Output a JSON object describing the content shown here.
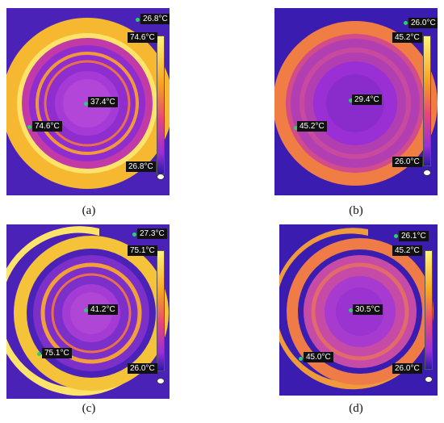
{
  "panels": [
    {
      "id": "a",
      "caption": "(a)",
      "scale_max": "74.6°C",
      "scale_min": "26.8°C",
      "top_reading": "26.8°C",
      "center_reading": "37.4°C",
      "left_reading": "74.6°C"
    },
    {
      "id": "b",
      "caption": "(b)",
      "scale_max": "45.2°C",
      "scale_min": "26.0°C",
      "top_reading": "26.0°C",
      "center_reading": "29.4°C",
      "left_reading": "45.2°C"
    },
    {
      "id": "c",
      "caption": "(c)",
      "scale_max": "75.1°C",
      "scale_min": "26.0°C",
      "top_reading": "27.3°C",
      "center_reading": "41.2°C",
      "left_reading": "75.1°C"
    },
    {
      "id": "d",
      "caption": "(d)",
      "scale_max": "45.2°C",
      "scale_min": "26.0°C",
      "top_reading": "26.1°C",
      "center_reading": "30.5°C",
      "left_reading": "45.0°C"
    }
  ],
  "colors": {
    "cold": "#2b1aa8",
    "mid": "#9b2fd6",
    "warm": "#e8457a",
    "hot": "#f7a21b",
    "hottest": "#fff27a"
  }
}
